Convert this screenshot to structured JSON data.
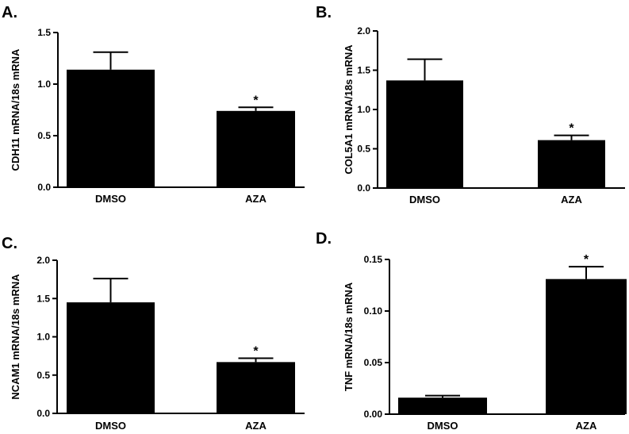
{
  "chart_data": [
    {
      "type": "bar",
      "panel": "A.",
      "ylabel": "CDH11 mRNA/18s mRNA",
      "categories": [
        "DMSO",
        "AZA"
      ],
      "values": [
        1.14,
        0.74
      ],
      "errors": [
        0.17,
        0.035
      ],
      "significance": [
        "",
        "*"
      ],
      "ylim": [
        0,
        1.5
      ],
      "yticks": [
        "0.0",
        "0.5",
        "1.0",
        "1.5"
      ]
    },
    {
      "type": "bar",
      "panel": "B.",
      "ylabel": "COL5A1 mRNA/18s mRNA",
      "categories": [
        "DMSO",
        "AZA"
      ],
      "values": [
        1.37,
        0.61
      ],
      "errors": [
        0.27,
        0.06
      ],
      "significance": [
        "",
        "*"
      ],
      "ylim": [
        0,
        2.0
      ],
      "yticks": [
        "0.0",
        "0.5",
        "1.0",
        "1.5",
        "2.0"
      ]
    },
    {
      "type": "bar",
      "panel": "C.",
      "ylabel": "NCAM1 mRNA/18s mRNA",
      "categories": [
        "DMSO",
        "AZA"
      ],
      "values": [
        1.45,
        0.67
      ],
      "errors": [
        0.31,
        0.05
      ],
      "significance": [
        "",
        "*"
      ],
      "ylim": [
        0,
        2.0
      ],
      "yticks": [
        "0.0",
        "0.5",
        "1.0",
        "1.5",
        "2.0"
      ]
    },
    {
      "type": "bar",
      "panel": "D.",
      "ylabel": "TNF mRNA/18s mRNA",
      "categories": [
        "DMSO",
        "AZA"
      ],
      "values": [
        0.016,
        0.131
      ],
      "errors": [
        0.002,
        0.012
      ],
      "significance": [
        "",
        "*"
      ],
      "ylim": [
        0,
        0.15
      ],
      "yticks": [
        "0.00",
        "0.05",
        "0.10",
        "0.15"
      ]
    }
  ]
}
